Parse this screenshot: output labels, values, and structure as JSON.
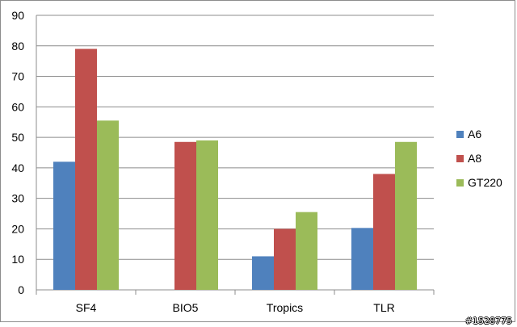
{
  "chart_data": {
    "type": "bar",
    "categories": [
      "SF4",
      "BIO5",
      "Tropics",
      "TLR"
    ],
    "series": [
      {
        "name": "A6",
        "values": [
          42,
          null,
          11,
          20.3
        ],
        "color": "#4f81bd"
      },
      {
        "name": "A8",
        "values": [
          79,
          48.5,
          20,
          38
        ],
        "color": "#c0504d"
      },
      {
        "name": "GT220",
        "values": [
          55.5,
          49,
          25.5,
          48.5
        ],
        "color": "#9bbb59"
      }
    ],
    "ylim": [
      0,
      90
    ],
    "yticks": [
      0,
      10,
      20,
      30,
      40,
      50,
      60,
      70,
      80,
      90
    ],
    "grid": true,
    "legend_position": "right",
    "title": "",
    "xlabel": "",
    "ylabel": ""
  },
  "watermark": "#1528775"
}
